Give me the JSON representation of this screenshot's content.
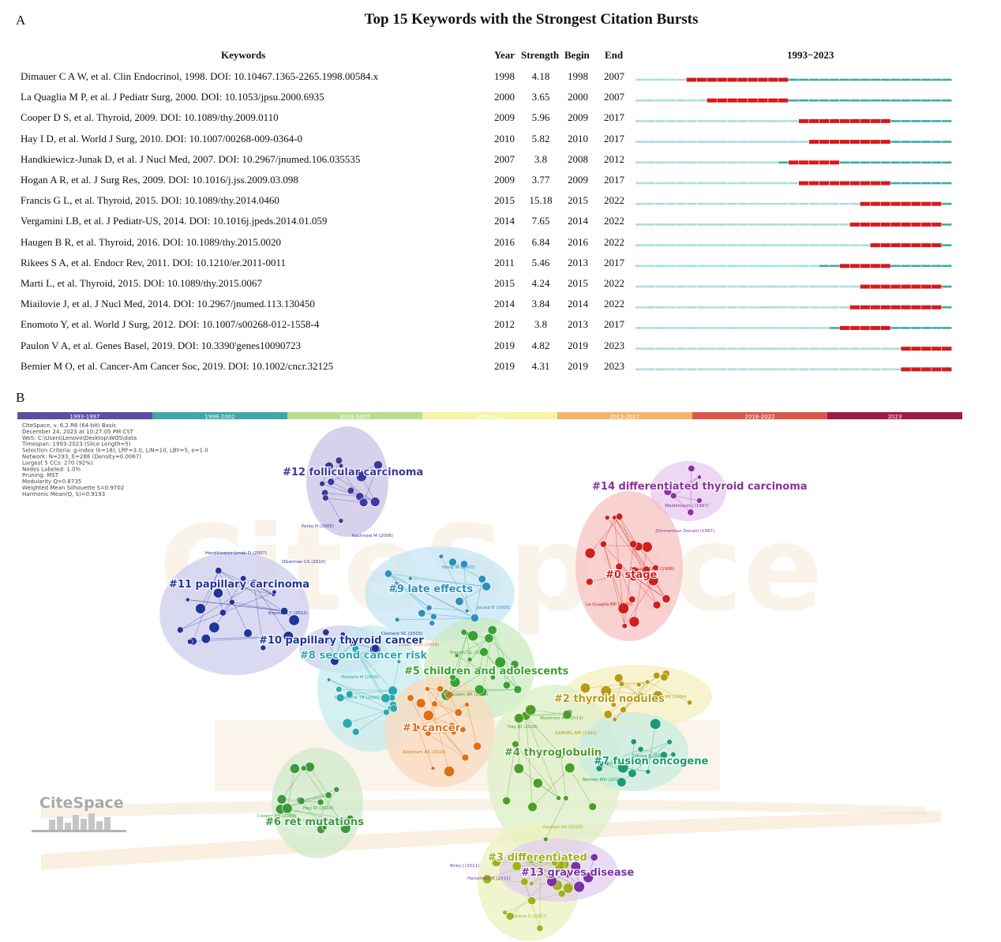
{
  "panel_a": {
    "label": "A",
    "title": "Top 15 Keywords with the Strongest Citation Bursts",
    "headers": {
      "keywords": "Keywords",
      "year": "Year",
      "strength": "Strength",
      "begin": "Begin",
      "end": "End",
      "range": "1993−2023"
    },
    "colors": {
      "burst": "#d7191c",
      "active": "#3aaaaa",
      "inactive": "#a9dede"
    }
  },
  "chart_data": {
    "type": "table",
    "timeline_start": 1993,
    "timeline_end": 2023,
    "rows": [
      {
        "ref": "Dimauer C A W, et al. Clin Endocrinol, 1998. DOI: 10.10467.1365-2265.1998.00584.x",
        "year": 1998,
        "strength": "4.18",
        "begin": 1998,
        "end": 2007
      },
      {
        "ref": "La Quaglia M P, et al. J Pediatr Surg, 2000. DOI: 10.1053/jpsu.2000.6935",
        "year": 2000,
        "strength": "3.65",
        "begin": 2000,
        "end": 2007
      },
      {
        "ref": "Cooper D S, et al. Thyroid, 2009. DOI: 10.1089/thy.2009.0110",
        "year": 2009,
        "strength": "5.96",
        "begin": 2009,
        "end": 2017
      },
      {
        "ref": "Hay I D, et al. World J Surg, 2010. DOI: 10.1007/00268-009-0364-0",
        "year": 2010,
        "strength": "5.82",
        "begin": 2010,
        "end": 2017
      },
      {
        "ref": "Handkiewicz-Junak D, et al. J Nucl Med, 2007. DOI: 10.2967/jnumed.106.035535",
        "year": 2007,
        "strength": "3.8",
        "begin": 2008,
        "end": 2012
      },
      {
        "ref": "Hogan A R, et al. J Surg Res, 2009. DOI: 10.1016/j.jss.2009.03.098",
        "year": 2009,
        "strength": "3.77",
        "begin": 2009,
        "end": 2017
      },
      {
        "ref": "Francis G L, et al. Thyroid, 2015. DOI: 10.1089/thy.2014.0460",
        "year": 2015,
        "strength": "15.18",
        "begin": 2015,
        "end": 2022
      },
      {
        "ref": "Vergamini LB, et al. J Pediatr-US, 2014. DOI: 10.1016j.jpeds.2014.01.059",
        "year": 2014,
        "strength": "7.65",
        "begin": 2014,
        "end": 2022
      },
      {
        "ref": "Haugen B R, et al. Thyroid, 2016. DOI: 10.1089/thy.2015.0020",
        "year": 2016,
        "strength": "6.84",
        "begin": 2016,
        "end": 2022
      },
      {
        "ref": "Rikees S A, et al. Endocr Rev, 2011. DOI: 10.1210/er.2011-0011",
        "year": 2011,
        "strength": "5.46",
        "begin": 2013,
        "end": 2017
      },
      {
        "ref": "Marti L, et al. Thyroid, 2015. DOI: 10.1089/thy.2015.0067",
        "year": 2015,
        "strength": "4.24",
        "begin": 2015,
        "end": 2022
      },
      {
        "ref": "Miailovie J, et al. J Nucl Med, 2014. DOI: 10.2967/jnumed.113.130450",
        "year": 2014,
        "strength": "3.84",
        "begin": 2014,
        "end": 2022
      },
      {
        "ref": "Enomoto Y, et al. World J Surg, 2012. DOI: 10.1007/s00268-012-1558-4",
        "year": 2012,
        "strength": "3.8",
        "begin": 2013,
        "end": 2017
      },
      {
        "ref": "Paulon V A, et al. Genes Basel, 2019. DOI: 10.3390'genes10090723",
        "year": 2019,
        "strength": "4.82",
        "begin": 2019,
        "end": 2023
      },
      {
        "ref": "Bemier M O, et al. Cancer-Am Cancer Soc, 2019. DOI: 10.1002/cncr.32125",
        "year": 2019,
        "strength": "4.31",
        "begin": 2019,
        "end": 2023
      }
    ]
  },
  "panel_b": {
    "label": "B",
    "timeline": [
      {
        "label": "1993-1997",
        "color": "#5b4ea3"
      },
      {
        "label": "1998-2002",
        "color": "#3ea7a8"
      },
      {
        "label": "2003-2007",
        "color": "#b9dd8f"
      },
      {
        "label": "2008-2012",
        "color": "#f3f5a2"
      },
      {
        "label": "2013-2017",
        "color": "#f4b36a"
      },
      {
        "label": "2018-2022",
        "color": "#d9584a"
      },
      {
        "label": "2023",
        "color": "#9d1b45"
      }
    ],
    "info": [
      "CiteSpace, v. 6.2.R6 (64-bit) Basic",
      "December 24, 2023 at 10:27:05 PM CST",
      "WoS: C:\\Users\\Lenovo\\Desktop\\WOS\\data",
      "Timespan: 1993-2023 (Slice Length=5)",
      "Selection Criteria: g-index (k=18), LRF=3.0, L/N=10, LBY=5, e=1.0",
      "Network: N=293, E=288 (Density=0.0067)",
      "Largest 5 CCs: 270 (92%)",
      "Nodes Labeled: 1.0%",
      "Pruning: MST",
      "Modularity Q=0.8735",
      "Weighted Mean Silhouette S=0.9702",
      "Harmonic Mean(Q, S)=0.9193"
    ],
    "logo": "CiteSpace",
    "clusters": [
      {
        "label": "#12 follicular carcinoma",
        "color": "#3b3a9c",
        "hull": "#c9c1e6"
      },
      {
        "label": "#14 differentiated thyroid carcinoma",
        "color": "#8e2fa0",
        "hull": "#e8c9ef"
      },
      {
        "label": "#0 stage",
        "color": "#cf1f1f",
        "hull": "#f5c2c0"
      },
      {
        "label": "#11 papillary carcinoma",
        "color": "#22349a",
        "hull": "#cccdee"
      },
      {
        "label": "#9 late effects",
        "color": "#2b8fbf",
        "hull": "#c6e6f4"
      },
      {
        "label": "#10 papillary thyroid cancer",
        "color": "#22349a",
        "hull": "#cccdee"
      },
      {
        "label": "#8 second cancer risk",
        "color": "#2aa7b0",
        "hull": "#c5ebee"
      },
      {
        "label": "#5 children and adolescents",
        "color": "#3aa232",
        "hull": "#cbe9c0"
      },
      {
        "label": "#2 thyroid nodules",
        "color": "#b79a12",
        "hull": "#f4efbf"
      },
      {
        "label": "#1 cancer",
        "color": "#e07014",
        "hull": "#f9d9bd"
      },
      {
        "label": "#4 thyroglobulin",
        "color": "#4c9e2a",
        "hull": "#dcefc6"
      },
      {
        "label": "#7 fusion oncogene",
        "color": "#1c9a74",
        "hull": "#c8ecdf"
      },
      {
        "label": "#6 ret mutations",
        "color": "#3c9a3c",
        "hull": "#cfe9c8"
      },
      {
        "label": "#3 differentiated",
        "color": "#9db21e",
        "hull": "#ecf2bf"
      },
      {
        "label": "#13 graves disease",
        "color": "#7b32a8",
        "hull": "#e3cdf0"
      }
    ],
    "node_labels": [
      {
        "text": "Perko H (2005)",
        "color": "#3b3a9c"
      },
      {
        "text": "Rachmiel M (2006)",
        "color": "#3b3a9c"
      },
      {
        "text": "Waldemann J (1997)",
        "color": "#8e2fa0"
      },
      {
        "text": "Zimmerman Donald (1997)",
        "color": "#8e2fa0"
      },
      {
        "text": "Handkiewicz-Junak D (2007)",
        "color": "#22349a"
      },
      {
        "text": "OGorman CS (2010)",
        "color": "#22349a"
      },
      {
        "text": "Hung W (2002)",
        "color": "#2b8fbf"
      },
      {
        "text": "Dinauer CAW (1998)",
        "color": "#cf1f1f"
      },
      {
        "text": "Jarzab B (2000)",
        "color": "#2b8fbf"
      },
      {
        "text": "La Quaglia MP (2000)",
        "color": "#cf1f1f"
      },
      {
        "text": "Enomoto Y (2012)",
        "color": "#22349a"
      },
      {
        "text": "Clement SC (2015)",
        "color": "#22349a"
      },
      {
        "text": "Shaikh MSK (2016)",
        "color": "#e07014"
      },
      {
        "text": "Francis GL (2015)",
        "color": "#3aa232"
      },
      {
        "text": "Mediata M (2006)",
        "color": "#2aa7b0"
      },
      {
        "text": "Demidchik YE (2006)",
        "color": "#2aa7b0"
      },
      {
        "text": "Haugen BR (2016)",
        "color": "#3aa232"
      },
      {
        "text": "OCHAR (1994)",
        "color": "#b79a12"
      },
      {
        "text": "Alzahrani AS (2013)",
        "color": "#4c9e2a"
      },
      {
        "text": "Hay ID (2018)",
        "color": "#4c9e2a"
      },
      {
        "text": "SAMUEL AM (1991)",
        "color": "#b79a12"
      },
      {
        "text": "Alzahrani AS (2016)",
        "color": "#e07014"
      },
      {
        "text": "Pekova B (2020)",
        "color": "#1c9a74"
      },
      {
        "text": "Bernier MO (2019)",
        "color": "#1c9a74"
      },
      {
        "text": "Hay ID (2010)",
        "color": "#3c9a3c"
      },
      {
        "text": "Cooper DS (2009)",
        "color": "#3c9a3c"
      },
      {
        "text": "Paulson VA (2019)",
        "color": "#9db21e"
      },
      {
        "text": "Birko J (2011)",
        "color": "#7b32a8"
      },
      {
        "text": "Hanscheid H (2011)",
        "color": "#7b32a8"
      },
      {
        "text": "Sibano O (2017)",
        "color": "#9db21e"
      }
    ]
  }
}
